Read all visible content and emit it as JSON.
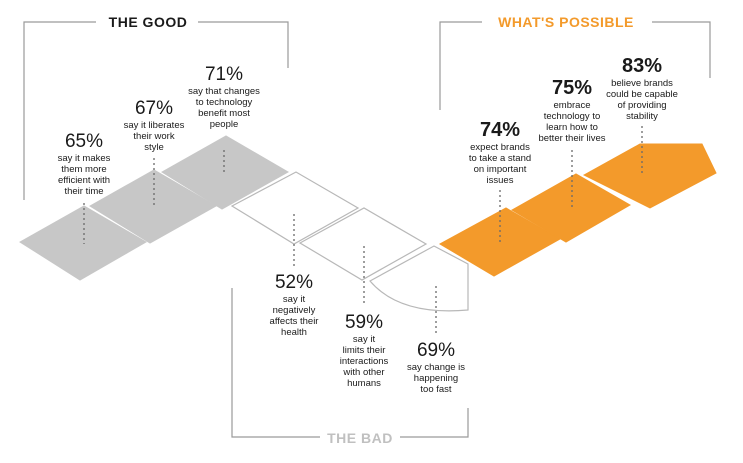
{
  "headings": {
    "good": "THE GOOD",
    "bad": "THE BAD",
    "possible": "WHAT'S POSSIBLE"
  },
  "colors": {
    "good_fill": "#c7c7c7",
    "possible_fill": "#f39a2b",
    "possible_heading": "#f39a2b",
    "bad_heading": "#c0c0c0",
    "bracket": "#9a9a9a",
    "text": "#1a1a1a"
  },
  "stats": {
    "good": [
      {
        "value": "65%",
        "text": [
          "say it makes",
          "them more",
          "efficient with",
          "their time"
        ]
      },
      {
        "value": "67%",
        "text": [
          "say it liberates",
          "their work",
          "style"
        ]
      },
      {
        "value": "71%",
        "text": [
          "say that changes",
          "to technology",
          "benefit most",
          "people"
        ]
      }
    ],
    "bad": [
      {
        "value": "52%",
        "text": [
          "say it",
          "negatively",
          "affects their",
          "health"
        ]
      },
      {
        "value": "59%",
        "text": [
          "say it",
          "limits their",
          "interactions",
          "with other",
          "humans"
        ]
      },
      {
        "value": "69%",
        "text": [
          "say change is",
          "happening",
          "too fast"
        ]
      }
    ],
    "possible": [
      {
        "value": "74%",
        "text": [
          "expect brands",
          "to take a stand",
          "on important",
          "issues"
        ]
      },
      {
        "value": "75%",
        "text": [
          "embrace",
          "technology to",
          "learn how to",
          "better their lives"
        ]
      },
      {
        "value": "83%",
        "text": [
          "believe brands",
          "could be capable",
          "of providing",
          "stability"
        ]
      }
    ]
  }
}
